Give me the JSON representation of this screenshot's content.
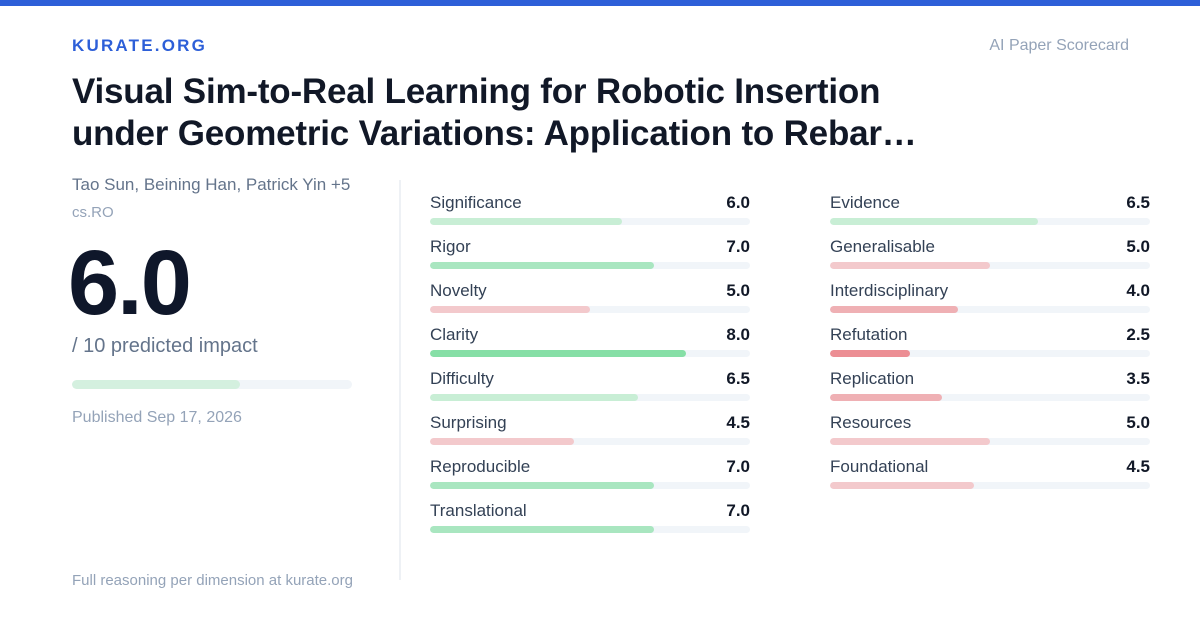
{
  "brand": "KURATE.ORG",
  "kicker": "AI Paper Scorecard",
  "paper": {
    "title_line1": "Visual Sim-to-Real Learning for Robotic Insertion",
    "title_line2": "under Geometric Variations: Application to Rebar…",
    "authors": "Tao Sun, Beining Han, Patrick Yin +5",
    "category": "cs.RO",
    "score": "6.0",
    "score_value": 6.0,
    "score_max": 10,
    "score_caption": "/ 10 predicted impact",
    "published": "Published Sep 17, 2026"
  },
  "footer": "Full reasoning per dimension at kurate.org",
  "colors": {
    "brand": "#2d5fd8",
    "green_strong": "#86dfa6",
    "green_medium": "#a9e6c0",
    "green_light": "#c8eed5",
    "red_light": "#f3c9cc",
    "red_medium": "#efb0b4",
    "red_strong": "#ec8e94"
  },
  "dimensions_col1": [
    {
      "label": "Significance",
      "value": "6.0",
      "score": 6.0,
      "color": "#c8eed5"
    },
    {
      "label": "Rigor",
      "value": "7.0",
      "score": 7.0,
      "color": "#a9e6c0"
    },
    {
      "label": "Novelty",
      "value": "5.0",
      "score": 5.0,
      "color": "#f3c9cc"
    },
    {
      "label": "Clarity",
      "value": "8.0",
      "score": 8.0,
      "color": "#86dfa6"
    },
    {
      "label": "Difficulty",
      "value": "6.5",
      "score": 6.5,
      "color": "#c8eed5"
    },
    {
      "label": "Surprising",
      "value": "4.5",
      "score": 4.5,
      "color": "#f3c9cc"
    },
    {
      "label": "Reproducible",
      "value": "7.0",
      "score": 7.0,
      "color": "#a9e6c0"
    },
    {
      "label": "Translational",
      "value": "7.0",
      "score": 7.0,
      "color": "#a9e6c0"
    }
  ],
  "dimensions_col2": [
    {
      "label": "Evidence",
      "value": "6.5",
      "score": 6.5,
      "color": "#c8eed5"
    },
    {
      "label": "Generalisable",
      "value": "5.0",
      "score": 5.0,
      "color": "#f3c9cc"
    },
    {
      "label": "Interdisciplinary",
      "value": "4.0",
      "score": 4.0,
      "color": "#efb0b4"
    },
    {
      "label": "Refutation",
      "value": "2.5",
      "score": 2.5,
      "color": "#ec8e94"
    },
    {
      "label": "Replication",
      "value": "3.5",
      "score": 3.5,
      "color": "#efb0b4"
    },
    {
      "label": "Resources",
      "value": "5.0",
      "score": 5.0,
      "color": "#f3c9cc"
    },
    {
      "label": "Foundational",
      "value": "4.5",
      "score": 4.5,
      "color": "#f3c9cc"
    }
  ]
}
